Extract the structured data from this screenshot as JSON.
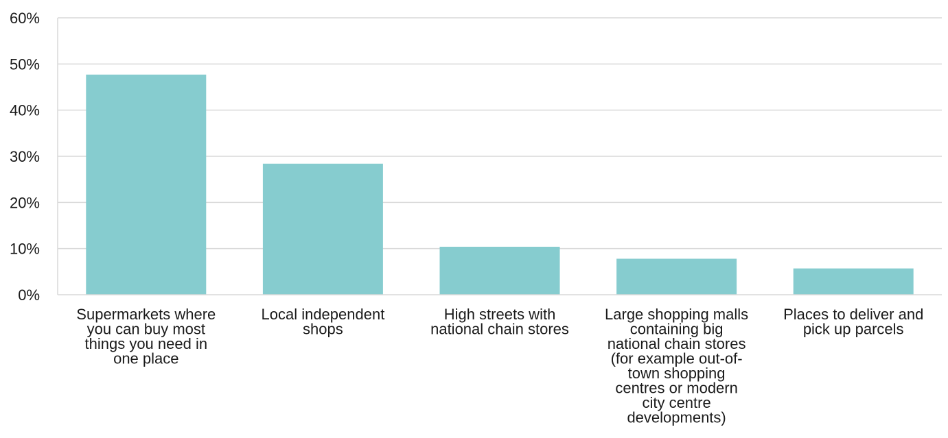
{
  "chart_data": {
    "type": "bar",
    "title": "",
    "xlabel": "",
    "ylabel": "",
    "ylim": [
      0,
      0.6
    ],
    "yticks": [
      {
        "value": 0,
        "label": "0%"
      },
      {
        "value": 0.1,
        "label": "10%"
      },
      {
        "value": 0.2,
        "label": "20%"
      },
      {
        "value": 0.3,
        "label": "30%"
      },
      {
        "value": 0.4,
        "label": "40%"
      },
      {
        "value": 0.5,
        "label": "50%"
      },
      {
        "value": 0.6,
        "label": "60%"
      }
    ],
    "categories": [
      [
        "Supermarkets where",
        "you can buy most",
        "things you need in",
        "one place"
      ],
      [
        "Local independent",
        "shops"
      ],
      [
        "High streets with",
        "national chain stores"
      ],
      [
        "Large shopping malls",
        "containing big",
        "national chain stores",
        "(for example out-of-",
        "town shopping",
        "centres or modern",
        "city centre",
        "developments)"
      ],
      [
        "Places to deliver and",
        "pick up parcels"
      ]
    ],
    "values": [
      0.477,
      0.284,
      0.104,
      0.078,
      0.057
    ],
    "bar_color": "#86cccf",
    "grid": true,
    "grid_color": "#d9d9d9",
    "legend": "none"
  }
}
